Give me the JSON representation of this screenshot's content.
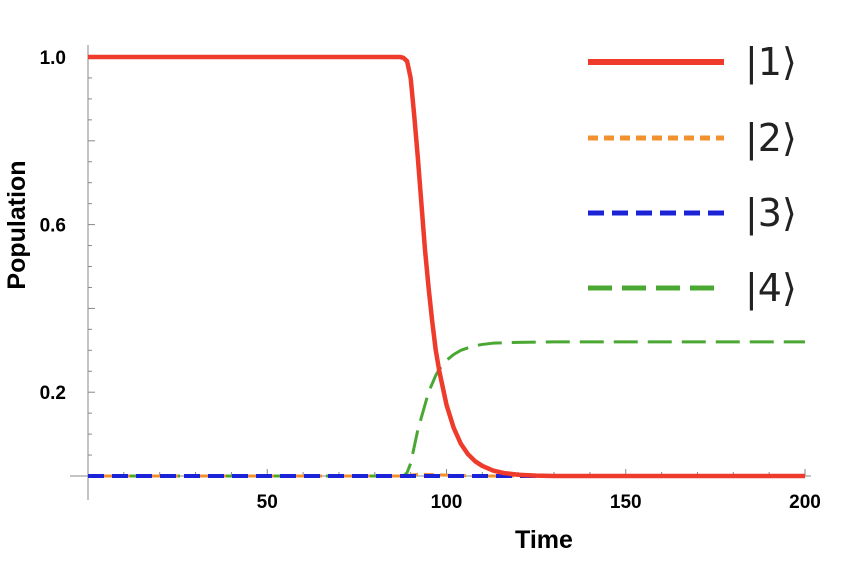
{
  "chart_data": {
    "type": "line",
    "title": "",
    "xlabel": "Time",
    "ylabel": "Population",
    "xlim": [
      0,
      200
    ],
    "ylim": [
      -0.005,
      1.0
    ],
    "x_ticks": [
      {
        "value": 50,
        "label": "50"
      },
      {
        "value": 100,
        "label": "100"
      },
      {
        "value": 150,
        "label": "150"
      },
      {
        "value": 200,
        "label": "200"
      }
    ],
    "y_ticks": [
      {
        "value": 0.2,
        "label": "0.2"
      },
      {
        "value": 0.6,
        "label": "0.6"
      },
      {
        "value": 1.0,
        "label": "1.0"
      }
    ],
    "grid": false,
    "legend_position": "top-right",
    "series": [
      {
        "name": "|1⟩",
        "color": "#ee3b2c",
        "dash": "solid",
        "x": [
          0,
          20,
          40,
          60,
          80,
          85,
          87,
          88,
          89,
          90,
          91,
          92,
          93,
          94,
          95,
          96,
          97,
          98,
          100,
          102,
          104,
          106,
          108,
          110,
          113,
          116,
          120,
          125,
          130,
          140,
          160,
          180,
          200
        ],
        "y": [
          1.0,
          1.0,
          1.0,
          1.0,
          1.0,
          1.0,
          1.0,
          0.998,
          0.99,
          0.95,
          0.86,
          0.76,
          0.65,
          0.54,
          0.45,
          0.37,
          0.3,
          0.25,
          0.17,
          0.115,
          0.077,
          0.052,
          0.035,
          0.024,
          0.013,
          0.007,
          0.003,
          0.001,
          0.0,
          0.0,
          0.0,
          0.0,
          0.0
        ]
      },
      {
        "name": "|2⟩",
        "color": "#f0902f",
        "dash": "short-dash",
        "x": [
          0,
          80,
          88,
          90,
          92,
          94,
          97,
          100,
          105,
          110,
          120,
          200
        ],
        "y": [
          0.0,
          0.0,
          0.0,
          0.002,
          0.004,
          0.004,
          0.003,
          0.002,
          0.001,
          0.0,
          0.0,
          0.0
        ]
      },
      {
        "name": "|3⟩",
        "color": "#1a23d6",
        "dash": "dash",
        "x": [
          0,
          200
        ],
        "y": [
          0.0,
          0.0
        ]
      },
      {
        "name": "|4⟩",
        "color": "#4aa832",
        "dash": "long-dash",
        "x": [
          0,
          80,
          88,
          89,
          90,
          91,
          92,
          93,
          94,
          95,
          96,
          97,
          98,
          100,
          102,
          104,
          106,
          108,
          110,
          113,
          116,
          120,
          130,
          140,
          160,
          180,
          200
        ],
        "y": [
          0.0,
          0.0,
          0.0,
          0.008,
          0.03,
          0.07,
          0.11,
          0.14,
          0.17,
          0.2,
          0.22,
          0.24,
          0.255,
          0.276,
          0.29,
          0.3,
          0.306,
          0.311,
          0.314,
          0.317,
          0.318,
          0.319,
          0.32,
          0.32,
          0.32,
          0.32,
          0.32
        ]
      }
    ]
  }
}
